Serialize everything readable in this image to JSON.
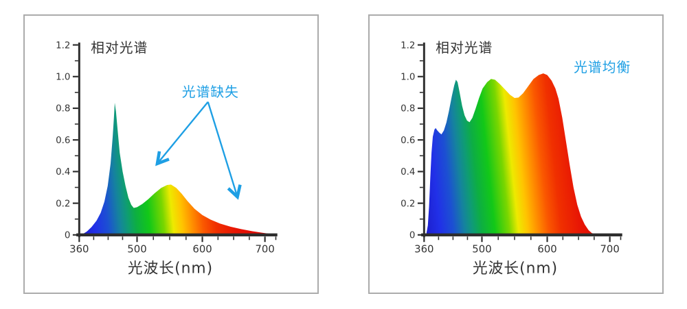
{
  "page": {
    "background": "#ffffff",
    "panel_border_color": "#ababab"
  },
  "colors": {
    "axis": "#2e2e2e",
    "text": "#333333",
    "accent_blue": "#1e9fe4"
  },
  "chart_data": [
    {
      "type": "area",
      "title": "相对光谱",
      "xlabel": "光波长(nm)",
      "ylim": [
        0,
        1.2
      ],
      "x_axis_note": "nonlinear wavelength axis, 360-500 nm segment compressed",
      "grid": false,
      "x_ticks": [
        [
          360,
          "360"
        ],
        [
          500,
          "500"
        ],
        [
          600,
          "600"
        ],
        [
          700,
          "700"
        ]
      ],
      "x_minor_per_interval": 3,
      "y_ticks": [
        [
          0,
          "0"
        ],
        [
          0.2,
          "0.2"
        ],
        [
          0.4,
          "0.4"
        ],
        [
          0.6,
          "0.6"
        ],
        [
          0.8,
          "0.8"
        ],
        [
          1.0,
          "1.0"
        ],
        [
          1.2,
          "1.2"
        ]
      ],
      "annotation": {
        "text": "光谱缺失",
        "color": "#1e9fe4",
        "anchor_nm": 613,
        "anchor_value": 0.874,
        "arrows": [
          {
            "from": [
              609,
              0.84
            ],
            "to": [
              531,
              0.45
            ]
          },
          {
            "from": [
              609,
              0.84
            ],
            "to": [
              656,
              0.24
            ]
          }
        ]
      },
      "points": [
        [
          365,
          0
        ],
        [
          378,
          0.02
        ],
        [
          390,
          0.05
        ],
        [
          402,
          0.09
        ],
        [
          412,
          0.14
        ],
        [
          421,
          0.21
        ],
        [
          429,
          0.31
        ],
        [
          436,
          0.45
        ],
        [
          441,
          0.62
        ],
        [
          444,
          0.74
        ],
        [
          446,
          0.835
        ],
        [
          449,
          0.78
        ],
        [
          453,
          0.66
        ],
        [
          458,
          0.52
        ],
        [
          465,
          0.4
        ],
        [
          472,
          0.31
        ],
        [
          479,
          0.235
        ],
        [
          486,
          0.19
        ],
        [
          492,
          0.17
        ],
        [
          500,
          0.175
        ],
        [
          508,
          0.195
        ],
        [
          517,
          0.225
        ],
        [
          527,
          0.263
        ],
        [
          537,
          0.297
        ],
        [
          546,
          0.315
        ],
        [
          552,
          0.318
        ],
        [
          560,
          0.297
        ],
        [
          568,
          0.262
        ],
        [
          577,
          0.215
        ],
        [
          588,
          0.165
        ],
        [
          600,
          0.125
        ],
        [
          613,
          0.097
        ],
        [
          628,
          0.072
        ],
        [
          645,
          0.052
        ],
        [
          662,
          0.037
        ],
        [
          680,
          0.023
        ],
        [
          695,
          0.014
        ],
        [
          706,
          0.008
        ],
        [
          717,
          0
        ]
      ],
      "gradient": [
        [
          360,
          "#1c1cc8"
        ],
        [
          400,
          "#2130e8"
        ],
        [
          432,
          "#1c50d2"
        ],
        [
          460,
          "#15839e"
        ],
        [
          480,
          "#0f9c74"
        ],
        [
          500,
          "#0dae43"
        ],
        [
          520,
          "#12c818"
        ],
        [
          542,
          "#7ad600"
        ],
        [
          556,
          "#edea00"
        ],
        [
          570,
          "#ffc400"
        ],
        [
          585,
          "#ff9000"
        ],
        [
          602,
          "#fa5800"
        ],
        [
          622,
          "#f03000"
        ],
        [
          652,
          "#e81604"
        ],
        [
          700,
          "#db0500"
        ],
        [
          730,
          "#d40000"
        ]
      ]
    },
    {
      "type": "area",
      "title": "相对光谱",
      "xlabel": "光波长(nm)",
      "ylim": [
        0,
        1.2
      ],
      "x_axis_note": "nonlinear wavelength axis, 360-500 nm segment compressed",
      "grid": false,
      "x_ticks": [
        [
          360,
          "360"
        ],
        [
          500,
          "500"
        ],
        [
          600,
          "600"
        ],
        [
          700,
          "700"
        ]
      ],
      "x_minor_per_interval": 3,
      "y_ticks": [
        [
          0,
          "0"
        ],
        [
          0.2,
          "0.2"
        ],
        [
          0.4,
          "0.4"
        ],
        [
          0.6,
          "0.6"
        ],
        [
          0.8,
          "0.8"
        ],
        [
          1.0,
          "1.0"
        ],
        [
          1.2,
          "1.2"
        ]
      ],
      "annotation": {
        "text": "光谱均衡",
        "color": "#1e9fe4",
        "anchor_nm": 688,
        "anchor_value": 1.029,
        "arrows": []
      },
      "points": [
        [
          365,
          0
        ],
        [
          369,
          0.06
        ],
        [
          372,
          0.18
        ],
        [
          375,
          0.36
        ],
        [
          378,
          0.52
        ],
        [
          381,
          0.62
        ],
        [
          385,
          0.665
        ],
        [
          388,
          0.675
        ],
        [
          392,
          0.66
        ],
        [
          397,
          0.645
        ],
        [
          402,
          0.635
        ],
        [
          408,
          0.66
        ],
        [
          414,
          0.71
        ],
        [
          420,
          0.78
        ],
        [
          427,
          0.875
        ],
        [
          433,
          0.945
        ],
        [
          437,
          0.98
        ],
        [
          441,
          0.965
        ],
        [
          446,
          0.9
        ],
        [
          452,
          0.815
        ],
        [
          458,
          0.755
        ],
        [
          464,
          0.722
        ],
        [
          470,
          0.712
        ],
        [
          477,
          0.74
        ],
        [
          485,
          0.8
        ],
        [
          493,
          0.865
        ],
        [
          501,
          0.925
        ],
        [
          508,
          0.965
        ],
        [
          514,
          0.985
        ],
        [
          520,
          0.98
        ],
        [
          527,
          0.955
        ],
        [
          535,
          0.92
        ],
        [
          543,
          0.885
        ],
        [
          550,
          0.865
        ],
        [
          556,
          0.868
        ],
        [
          563,
          0.895
        ],
        [
          571,
          0.94
        ],
        [
          579,
          0.985
        ],
        [
          587,
          1.01
        ],
        [
          594,
          1.02
        ],
        [
          600,
          1.01
        ],
        [
          607,
          0.975
        ],
        [
          613,
          0.925
        ],
        [
          618,
          0.86
        ],
        [
          624,
          0.74
        ],
        [
          630,
          0.59
        ],
        [
          636,
          0.44
        ],
        [
          642,
          0.3
        ],
        [
          648,
          0.19
        ],
        [
          654,
          0.115
        ],
        [
          660,
          0.065
        ],
        [
          666,
          0.03
        ],
        [
          671,
          0.012
        ],
        [
          676,
          0.004
        ],
        [
          680,
          0
        ]
      ],
      "gradient": [
        [
          360,
          "#1c1cc8"
        ],
        [
          400,
          "#2130e8"
        ],
        [
          432,
          "#1c50d2"
        ],
        [
          460,
          "#15839e"
        ],
        [
          480,
          "#0f9c74"
        ],
        [
          500,
          "#0dae43"
        ],
        [
          520,
          "#12c818"
        ],
        [
          542,
          "#7ad600"
        ],
        [
          556,
          "#edea00"
        ],
        [
          570,
          "#ffc400"
        ],
        [
          585,
          "#ff9000"
        ],
        [
          602,
          "#fa5800"
        ],
        [
          622,
          "#f03000"
        ],
        [
          652,
          "#e81604"
        ],
        [
          700,
          "#db0500"
        ],
        [
          730,
          "#d40000"
        ]
      ]
    }
  ]
}
